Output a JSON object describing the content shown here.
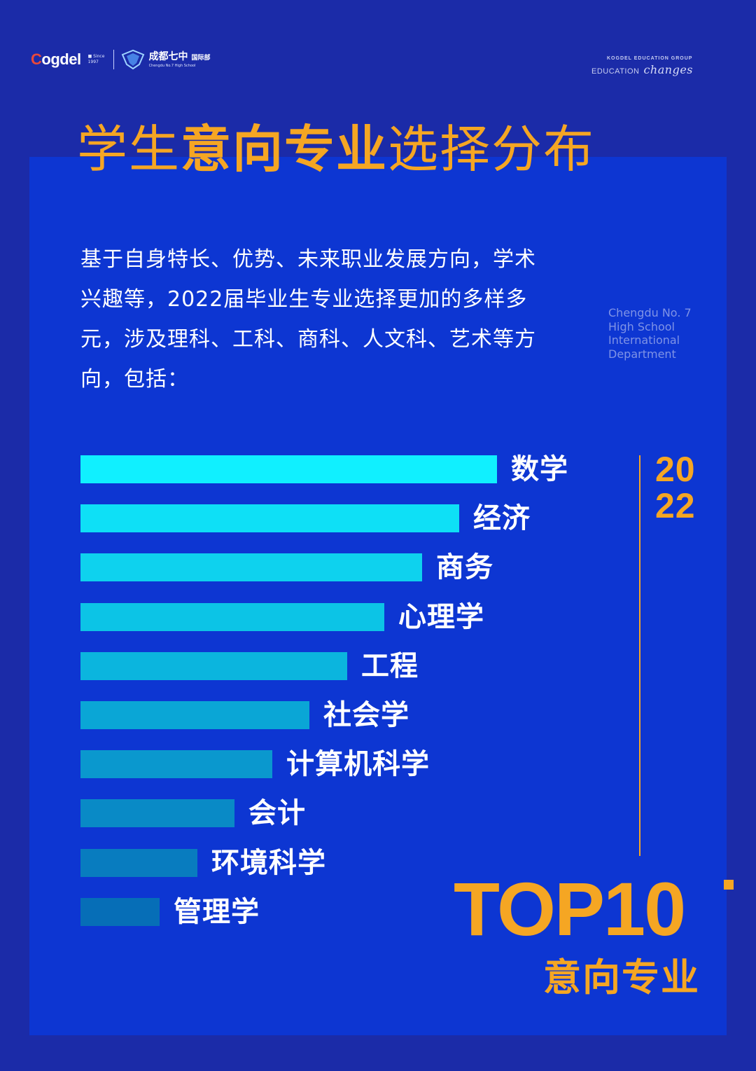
{
  "header": {
    "brand": "ogdel",
    "brand_initial": "C",
    "brand_sub": "■ Since 1997",
    "school_name": "成都七中",
    "school_dept": "国际部",
    "school_en": "Chengdu No.7 High School",
    "group_name": "KOGDEL EDUCATION GROUP",
    "slogan_main": "EDUCATION",
    "slogan_script": "changes"
  },
  "title": {
    "part1": "学生",
    "part2": "意向专业",
    "part3": "选择分布"
  },
  "intro": "基于自身特长、优势、未来职业发展方向，学术兴趣等，2022届毕业生专业选择更加的多样多元，涉及理科、工科、商科、人文科、艺术等方向，包括：",
  "side_note": "Chengdu No. 7 High School International Department",
  "year_top": "20",
  "year_bottom": "22",
  "top10": "TOP10",
  "top10_sub": "意向专业",
  "chart_data": {
    "type": "bar",
    "orientation": "horizontal",
    "categories": [
      "数学",
      "经济",
      "商务",
      "心理学",
      "工程",
      "社会学",
      "计算机科学",
      "会计",
      "环境科学",
      "管理学"
    ],
    "values": [
      10,
      9,
      8,
      7,
      6,
      5,
      4,
      3,
      2,
      1
    ],
    "colors": [
      "#10f0ff",
      "#0ee0f6",
      "#0ed2ee",
      "#0cc4e6",
      "#0bb5de",
      "#0aa6d6",
      "#0a98ce",
      "#098ac6",
      "#087cbf",
      "#066eb7"
    ],
    "title": "",
    "xlabel": "",
    "ylabel": ""
  }
}
